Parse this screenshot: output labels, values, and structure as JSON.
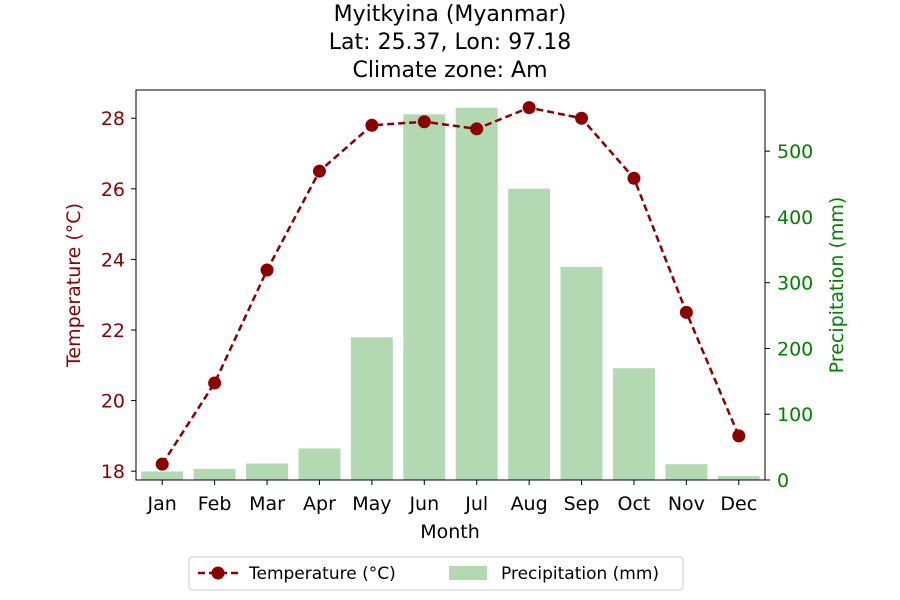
{
  "chart_data": {
    "type": "bar+line",
    "title_lines": [
      "Myitkyina (Myanmar)",
      "Lat: 25.37, Lon: 97.18",
      "Climate zone: Am"
    ],
    "xlabel": "Month",
    "ylabel_left": "Temperature (°C)",
    "ylabel_right": "Precipitation (mm)",
    "categories": [
      "Jan",
      "Feb",
      "Mar",
      "Apr",
      "May",
      "Jun",
      "Jul",
      "Aug",
      "Sep",
      "Oct",
      "Nov",
      "Dec"
    ],
    "ylim_left": [
      17.75,
      28.8
    ],
    "ylim_right": [
      0,
      593
    ],
    "yticks_left": [
      18,
      20,
      22,
      24,
      26,
      28
    ],
    "yticks_right": [
      0,
      100,
      200,
      300,
      400,
      500
    ],
    "grid": false,
    "legend_position": "bottom-center",
    "series": [
      {
        "name": "Temperature (°C)",
        "kind": "line",
        "axis": "left",
        "color": "#8b0000",
        "style": "dashed",
        "marker": "circle",
        "values": [
          18.2,
          20.5,
          23.7,
          26.5,
          27.8,
          27.9,
          27.7,
          28.3,
          28.0,
          26.3,
          22.5,
          19.0
        ]
      },
      {
        "name": "Precipitation (mm)",
        "kind": "bar",
        "axis": "right",
        "color": "#b2d9b2",
        "values": [
          13,
          17,
          25,
          48,
          217,
          556,
          566,
          443,
          324,
          170,
          24,
          6
        ]
      }
    ],
    "colors": {
      "left_axis": "#8b0000",
      "right_axis": "#008000",
      "text": "#000000"
    }
  }
}
